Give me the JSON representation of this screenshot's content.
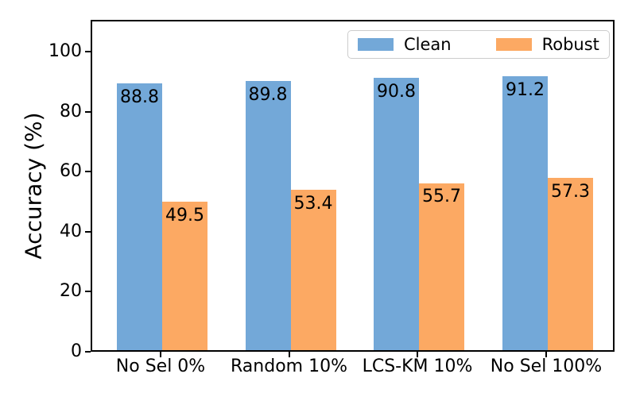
{
  "figure": {
    "background": "#ffffff"
  },
  "chart_data": {
    "type": "bar",
    "title": "",
    "xlabel": "",
    "ylabel": "Accuracy (%)",
    "categories": [
      "No Sel 0%",
      "Random 10%",
      "LCS-KM 10%",
      "No Sel 100%"
    ],
    "series": [
      {
        "name": "Clean",
        "color": "#73a8d8",
        "values": [
          88.8,
          89.8,
          90.8,
          91.2
        ]
      },
      {
        "name": "Robust",
        "color": "#fca963",
        "values": [
          49.5,
          53.4,
          55.7,
          57.3
        ]
      }
    ],
    "bar_labels": true,
    "ylim": [
      0,
      110.6
    ],
    "yticks": [
      0,
      20,
      40,
      60,
      80,
      100
    ],
    "grid": false,
    "legend_position": "upper right",
    "axis_color": "#000000"
  }
}
